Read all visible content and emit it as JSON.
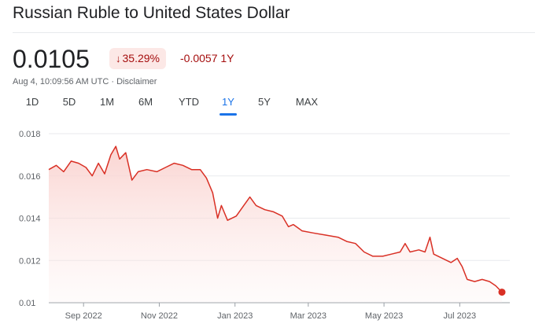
{
  "header": {
    "title": "Russian Ruble to United States Dollar"
  },
  "quote": {
    "price": "0.0105",
    "pct_change": "35.29%",
    "pct_change_arrow": "↓",
    "abs_change": "-0.0057 1Y",
    "timestamp": "Aug 4, 10:09:56 AM UTC · Disclaimer"
  },
  "tabs": [
    {
      "label": "1D"
    },
    {
      "label": "5D"
    },
    {
      "label": "1M"
    },
    {
      "label": "6M"
    },
    {
      "label": "YTD"
    },
    {
      "label": "1Y",
      "active": true
    },
    {
      "label": "5Y"
    },
    {
      "label": "MAX"
    }
  ],
  "colors": {
    "line": "#d93025",
    "fill": "#fce8e6",
    "badge_bg": "#fce8e6",
    "badge_text": "#a50e0e",
    "active_tab": "#1a73e8"
  },
  "chart_data": {
    "type": "area",
    "title": "",
    "xlabel": "",
    "ylabel": "",
    "y_ticks": [
      "0.018",
      "0.016",
      "0.014",
      "0.012",
      "0.01"
    ],
    "x_ticks": [
      "Sep 2022",
      "Nov 2022",
      "Jan 2023",
      "Mar 2023",
      "May 2023",
      "Jul 2023"
    ],
    "ylim": [
      0.01,
      0.018
    ],
    "xlim": [
      "2022-08-04",
      "2023-08-04"
    ],
    "grid": "horizontal",
    "series": [
      {
        "points": [
          [
            "2022-08-04",
            0.0163
          ],
          [
            "2022-08-10",
            0.0165
          ],
          [
            "2022-08-16",
            0.0162
          ],
          [
            "2022-08-22",
            0.0167
          ],
          [
            "2022-08-28",
            0.0166
          ],
          [
            "2022-09-03",
            0.0164
          ],
          [
            "2022-09-08",
            0.016
          ],
          [
            "2022-09-13",
            0.0166
          ],
          [
            "2022-09-18",
            0.0161
          ],
          [
            "2022-09-23",
            0.017
          ],
          [
            "2022-09-27",
            0.0174
          ],
          [
            "2022-09-30",
            0.0168
          ],
          [
            "2022-10-05",
            0.0171
          ],
          [
            "2022-10-10",
            0.0158
          ],
          [
            "2022-10-15",
            0.0162
          ],
          [
            "2022-10-22",
            0.0163
          ],
          [
            "2022-10-30",
            0.0162
          ],
          [
            "2022-11-06",
            0.0164
          ],
          [
            "2022-11-13",
            0.0166
          ],
          [
            "2022-11-20",
            0.0165
          ],
          [
            "2022-11-27",
            0.0163
          ],
          [
            "2022-12-04",
            0.0163
          ],
          [
            "2022-12-09",
            0.0159
          ],
          [
            "2022-12-14",
            0.0152
          ],
          [
            "2022-12-18",
            0.014
          ],
          [
            "2022-12-21",
            0.0146
          ],
          [
            "2022-12-26",
            0.0139
          ],
          [
            "2023-01-02",
            0.0141
          ],
          [
            "2023-01-08",
            0.0146
          ],
          [
            "2023-01-13",
            0.015
          ],
          [
            "2023-01-18",
            0.0146
          ],
          [
            "2023-01-25",
            0.0144
          ],
          [
            "2023-02-01",
            0.0143
          ],
          [
            "2023-02-08",
            0.0141
          ],
          [
            "2023-02-13",
            0.0136
          ],
          [
            "2023-02-17",
            0.0137
          ],
          [
            "2023-02-24",
            0.0134
          ],
          [
            "2023-03-05",
            0.0133
          ],
          [
            "2023-03-15",
            0.0132
          ],
          [
            "2023-03-25",
            0.0131
          ],
          [
            "2023-04-01",
            0.0129
          ],
          [
            "2023-04-08",
            0.0128
          ],
          [
            "2023-04-15",
            0.0124
          ],
          [
            "2023-04-22",
            0.0122
          ],
          [
            "2023-04-30",
            0.0122
          ],
          [
            "2023-05-07",
            0.0123
          ],
          [
            "2023-05-14",
            0.0124
          ],
          [
            "2023-05-18",
            0.0128
          ],
          [
            "2023-05-22",
            0.0124
          ],
          [
            "2023-05-29",
            0.0125
          ],
          [
            "2023-06-03",
            0.0124
          ],
          [
            "2023-06-07",
            0.0131
          ],
          [
            "2023-06-10",
            0.0123
          ],
          [
            "2023-06-17",
            0.0121
          ],
          [
            "2023-06-24",
            0.0119
          ],
          [
            "2023-06-29",
            0.0121
          ],
          [
            "2023-07-03",
            0.0117
          ],
          [
            "2023-07-07",
            0.0111
          ],
          [
            "2023-07-13",
            0.011
          ],
          [
            "2023-07-19",
            0.0111
          ],
          [
            "2023-07-25",
            0.011
          ],
          [
            "2023-07-30",
            0.0108
          ],
          [
            "2023-08-04",
            0.0105
          ]
        ]
      }
    ]
  }
}
